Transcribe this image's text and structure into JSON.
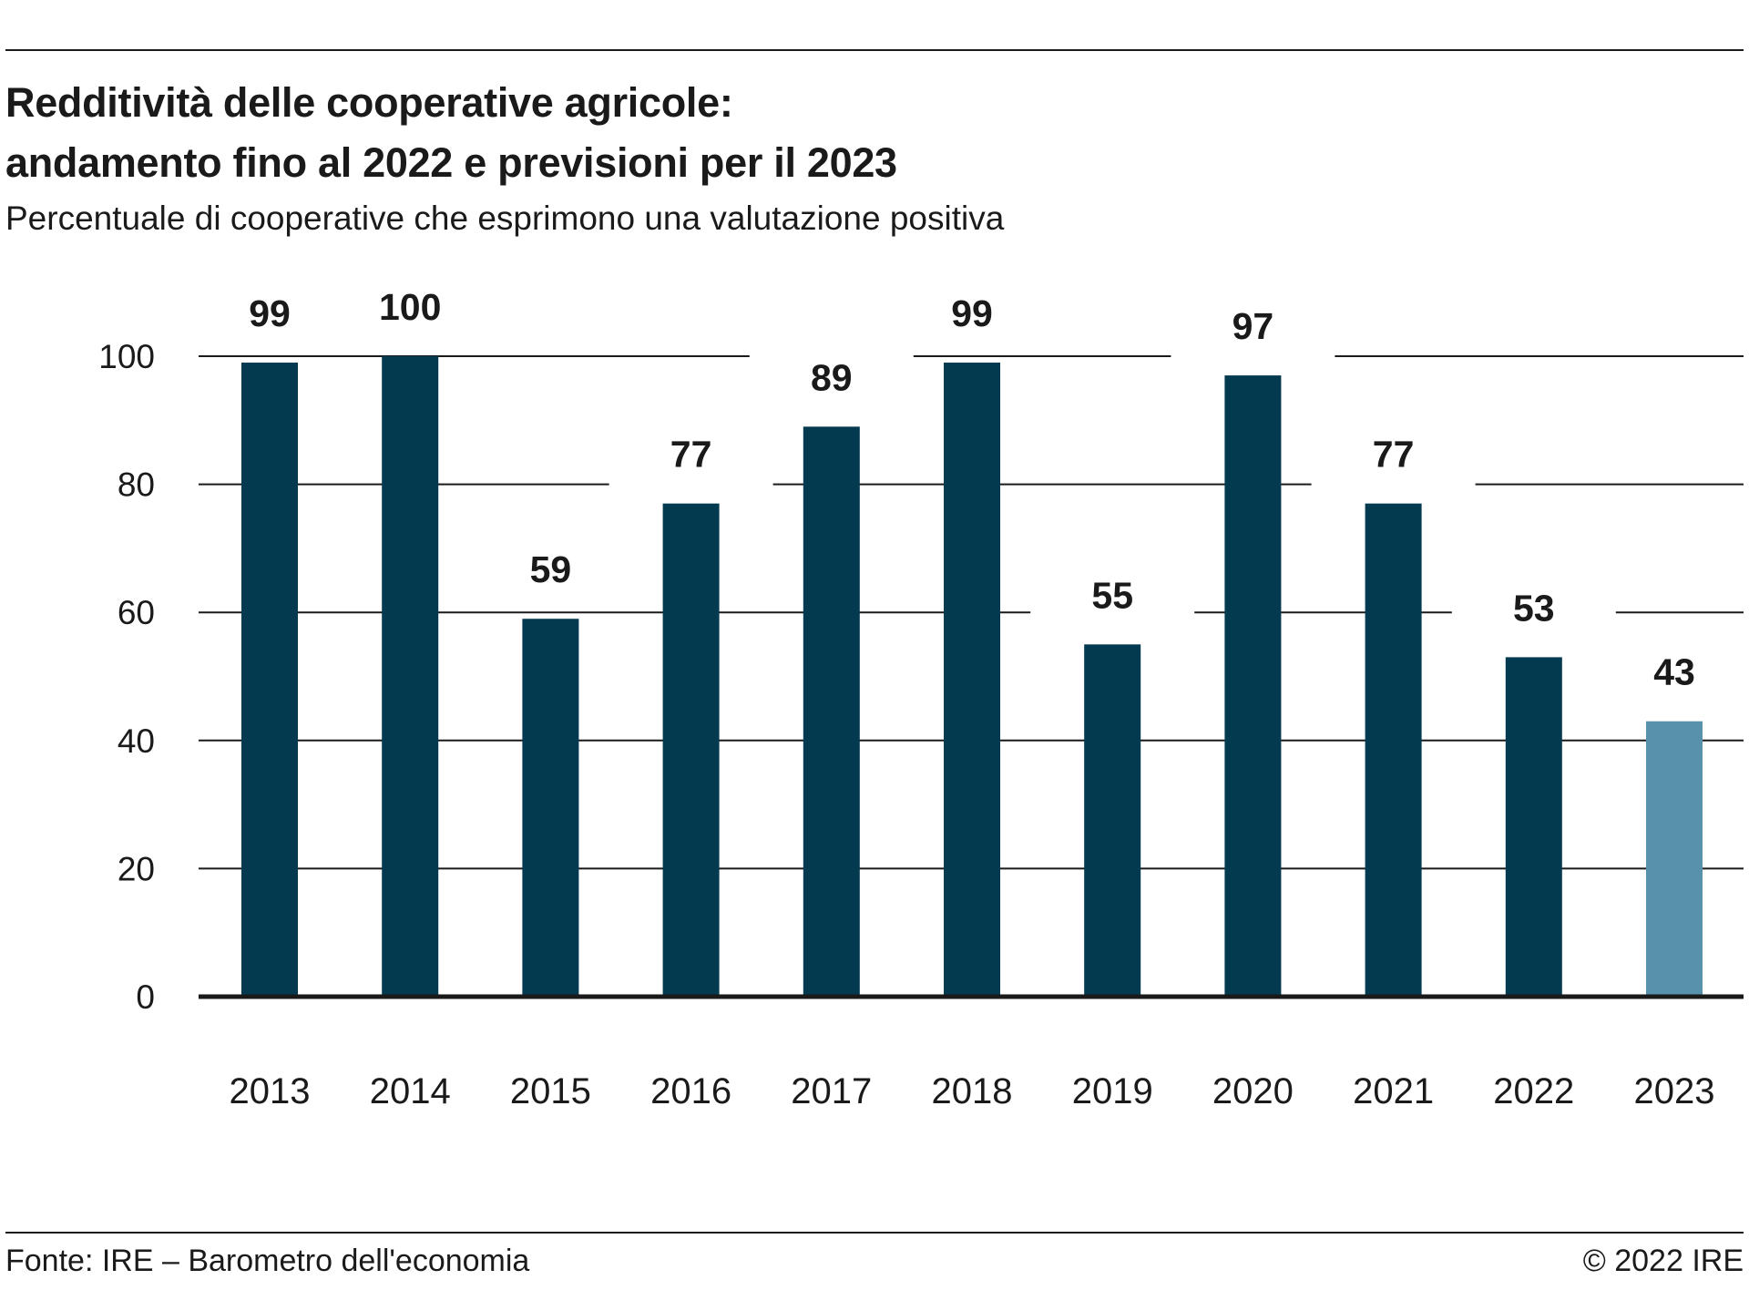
{
  "header": {
    "title_line1": "Redditività delle cooperative agricole:",
    "title_line2": "andamento fino al 2022 e previsioni per il 2023",
    "subtitle": "Percentuale di cooperative che esprimono una valutazione positiva"
  },
  "footer": {
    "source": "Fonte: IRE – Barometro dell'economia",
    "copyright": "© 2022 IRE"
  },
  "colors": {
    "actual": "#033a4f",
    "forecast": "#5791ab",
    "grid": "#1a1a1a",
    "text": "#1a1a1a"
  },
  "chart_data": {
    "type": "bar",
    "categories": [
      "2013",
      "2014",
      "2015",
      "2016",
      "2017",
      "2018",
      "2019",
      "2020",
      "2021",
      "2022",
      "2023"
    ],
    "values": [
      99,
      100,
      59,
      77,
      89,
      99,
      55,
      97,
      77,
      53,
      43
    ],
    "forecast_index": [
      10
    ],
    "ylim": [
      0,
      100
    ],
    "yticks": [
      0,
      20,
      40,
      60,
      80,
      100
    ],
    "grid": true,
    "data_labels": true,
    "legend": "none"
  }
}
